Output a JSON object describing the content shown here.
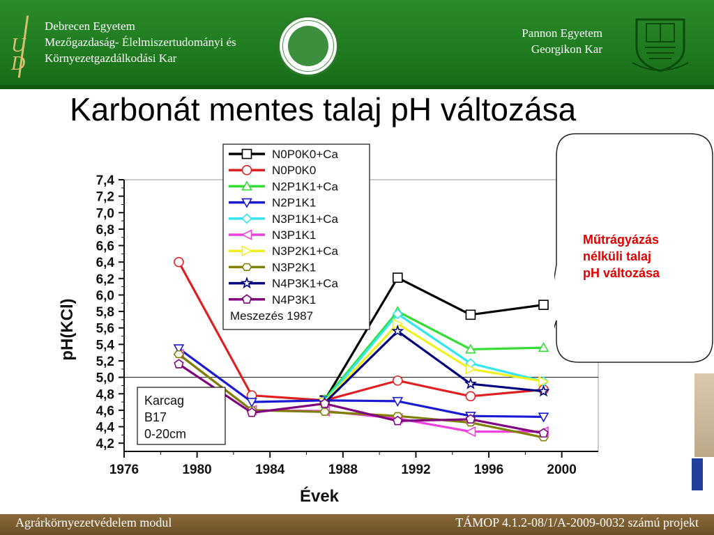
{
  "header": {
    "left_university_lines": [
      "Debrecen Egyetem",
      "Mezőgazdaság- Élelmiszertudományi és",
      "Környezetgazdálkodási Kar"
    ],
    "left_logo_letters": "UD",
    "right_university_lines": [
      "Pannon Egyetem",
      "Georgikon Kar"
    ]
  },
  "title": "Karbonát mentes talaj pH változása",
  "callout_lines": [
    "Műtrágyázás",
    "nélküli talaj",
    "pH változása"
  ],
  "footer": {
    "left": "Agrárkörnyezetvédelem modul",
    "right": "TÁMOP 4.1.2-08/1/A-2009-0032 számú projekt"
  },
  "chart_data": {
    "type": "line",
    "xlabel": "Évek",
    "ylabel": "pH(KCl)",
    "xlim": [
      1976,
      2002
    ],
    "ylim": [
      4.1,
      7.4
    ],
    "x_ticks": [
      "1976",
      "1980",
      "1984",
      "1988",
      "1992",
      "1996",
      "2000"
    ],
    "y_ticks": [
      "4,2",
      "4,4",
      "4,6",
      "4,8",
      "5,0",
      "5,2",
      "5,4",
      "5,6",
      "5,8",
      "6,0",
      "6,2",
      "6,4",
      "6,6",
      "6,8",
      "7,0",
      "7,2",
      "7,4"
    ],
    "reference_line_y": 5.0,
    "legend_position": "top-center",
    "legend_note": "Meszezés 1987",
    "site_info": [
      "Karcag",
      "B17",
      "0-20cm"
    ],
    "x": [
      1979,
      1983,
      1987,
      1991,
      1995,
      1999
    ],
    "series": [
      {
        "name": "N0P0K0+Ca",
        "color": "#000000",
        "marker": "square",
        "values": [
          null,
          null,
          4.72,
          6.21,
          5.76,
          5.88
        ]
      },
      {
        "name": "N0P0K0",
        "color": "#e02020",
        "marker": "circle",
        "values": [
          6.4,
          4.78,
          4.72,
          4.96,
          4.77,
          4.85
        ]
      },
      {
        "name": "N2P1K1+Ca",
        "color": "#33dd33",
        "marker": "triangle-up",
        "values": [
          null,
          null,
          4.73,
          5.8,
          5.34,
          5.36
        ]
      },
      {
        "name": "N2P1K1",
        "color": "#1a1ad0",
        "marker": "triangle-down",
        "values": [
          5.35,
          4.7,
          4.72,
          4.71,
          4.53,
          4.52
        ]
      },
      {
        "name": "N3P1K1+Ca",
        "color": "#33e6f0",
        "marker": "diamond",
        "values": [
          null,
          null,
          4.71,
          5.77,
          5.17,
          4.95
        ]
      },
      {
        "name": "N3P1K1",
        "color": "#f040e0",
        "marker": "triangle-left",
        "values": [
          5.28,
          4.6,
          4.59,
          4.5,
          4.34,
          4.34
        ]
      },
      {
        "name": "N3P2K1+Ca",
        "color": "#f0f020",
        "marker": "triangle-right",
        "values": [
          null,
          null,
          4.7,
          5.65,
          5.1,
          4.95
        ]
      },
      {
        "name": "N3P2K1",
        "color": "#808000",
        "marker": "hexagon",
        "values": [
          5.28,
          4.6,
          4.58,
          4.53,
          4.45,
          4.27
        ]
      },
      {
        "name": "N4P3K1+Ca",
        "color": "#000080",
        "marker": "star",
        "values": [
          null,
          null,
          4.69,
          5.56,
          4.92,
          4.83
        ]
      },
      {
        "name": "N4P3K1",
        "color": "#800080",
        "marker": "pentagon",
        "values": [
          5.16,
          4.57,
          4.68,
          4.47,
          4.49,
          4.32
        ]
      }
    ]
  },
  "colors": {
    "header_green": "#1f7a1f",
    "footer_brown": "#7a5a2e",
    "callout_red": "#e00000"
  }
}
